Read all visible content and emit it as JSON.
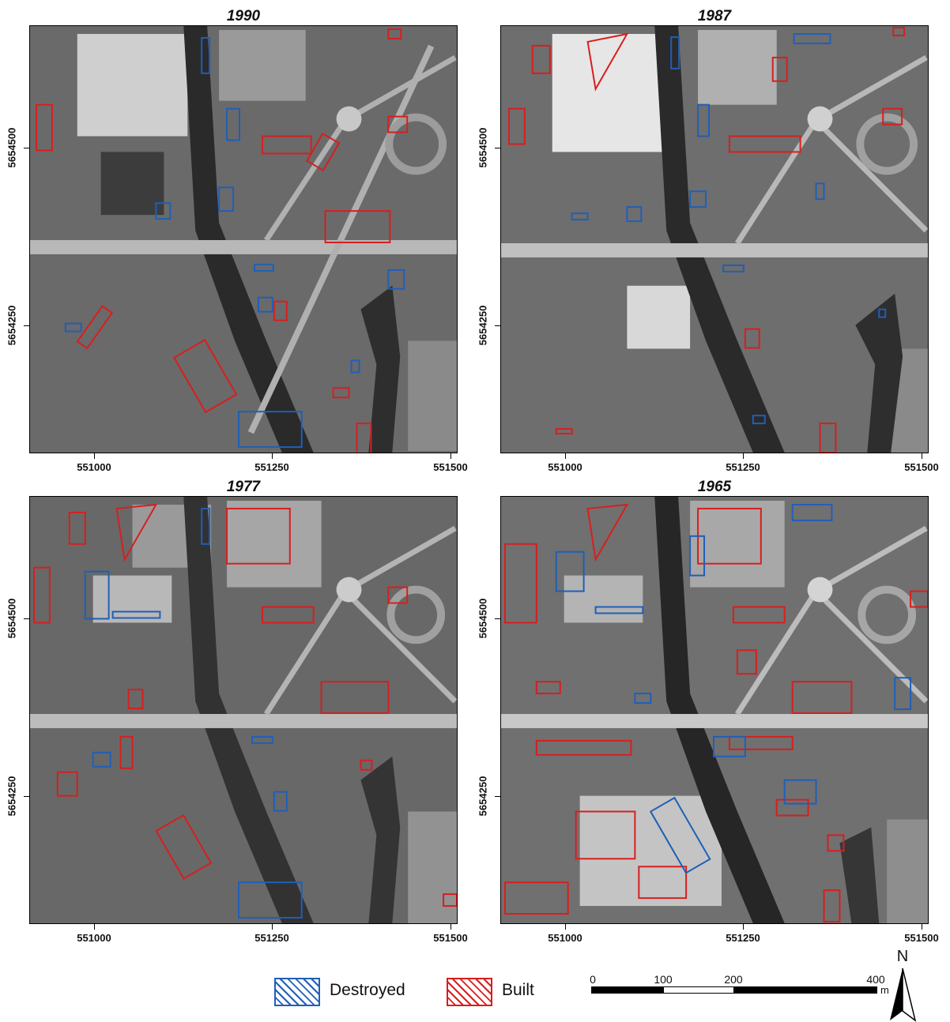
{
  "panels": [
    {
      "id": "1990",
      "title": "1990"
    },
    {
      "id": "1987",
      "title": "1987"
    },
    {
      "id": "1977",
      "title": "1977"
    },
    {
      "id": "1965",
      "title": "1965"
    }
  ],
  "axes": {
    "x_ticks": [
      "551000",
      "551250",
      "551500"
    ],
    "y_ticks": [
      "5654500",
      "5654250"
    ]
  },
  "legend": {
    "destroyed_label": "Destroyed",
    "built_label": "Built",
    "colors": {
      "destroyed": "#1f5fb8",
      "built": "#d81e1e"
    }
  },
  "scalebar": {
    "labels": [
      "0",
      "100",
      "200",
      "400"
    ],
    "unit": "m"
  },
  "north_arrow": {
    "label": "N",
    "icon": "north-arrow-icon"
  }
}
